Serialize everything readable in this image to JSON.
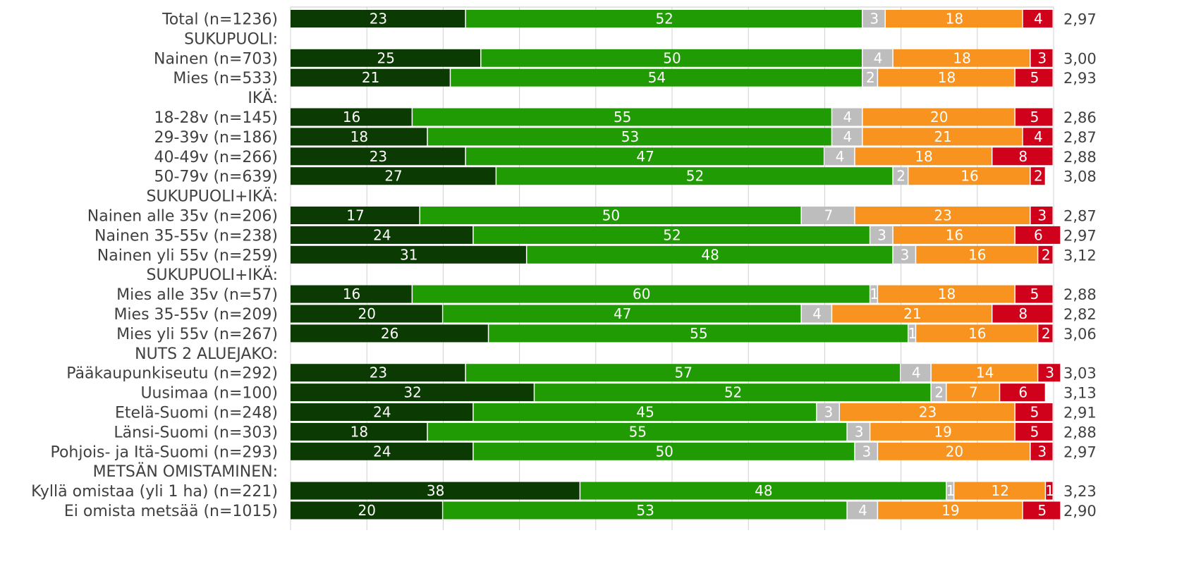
{
  "chart_data": {
    "type": "bar",
    "orientation": "horizontal",
    "stacked": true,
    "percent_stacked": true,
    "xlim": [
      0,
      100
    ],
    "grid": true,
    "legend": "none",
    "series_colors": [
      "#0b3a02",
      "#219b04",
      "#bdbdbd",
      "#f7931e",
      "#d0021b"
    ],
    "rows": [
      {
        "label": "Total (n=1236)",
        "values": [
          23,
          52,
          3,
          18,
          4
        ],
        "mean": "2,97"
      },
      {
        "label": "SUKUPUOLI:",
        "header": true
      },
      {
        "label": "Nainen (n=703)",
        "values": [
          25,
          50,
          4,
          18,
          3
        ],
        "mean": "3,00"
      },
      {
        "label": "Mies (n=533)",
        "values": [
          21,
          54,
          2,
          18,
          5
        ],
        "mean": "2,93"
      },
      {
        "label": "IKÄ:",
        "header": true
      },
      {
        "label": "18-28v (n=145)",
        "values": [
          16,
          55,
          4,
          20,
          5
        ],
        "mean": "2,86"
      },
      {
        "label": "29-39v (n=186)",
        "values": [
          18,
          53,
          4,
          21,
          4
        ],
        "mean": "2,87"
      },
      {
        "label": "40-49v (n=266)",
        "values": [
          23,
          47,
          4,
          18,
          8
        ],
        "mean": "2,88"
      },
      {
        "label": "50-79v (n=639)",
        "values": [
          27,
          52,
          2,
          16,
          2
        ],
        "mean": "3,08"
      },
      {
        "label": "SUKUPUOLI+IKÄ:",
        "header": true
      },
      {
        "label": "Nainen alle 35v  (n=206)",
        "values": [
          17,
          50,
          7,
          23,
          3
        ],
        "mean": "2,87"
      },
      {
        "label": "Nainen 35-55v (n=238)",
        "values": [
          24,
          52,
          3,
          16,
          6
        ],
        "mean": "2,97"
      },
      {
        "label": "Nainen yli 55v (n=259)",
        "values": [
          31,
          48,
          3,
          16,
          2
        ],
        "mean": "3,12"
      },
      {
        "label": "SUKUPUOLI+IKÄ:",
        "header": true
      },
      {
        "label": "Mies alle 35v (n=57)",
        "values": [
          16,
          60,
          1,
          18,
          5
        ],
        "mean": "2,88"
      },
      {
        "label": "Mies 35-55v (n=209)",
        "values": [
          20,
          47,
          4,
          21,
          8
        ],
        "mean": "2,82"
      },
      {
        "label": "Mies yli 55v (n=267)",
        "values": [
          26,
          55,
          1,
          16,
          2
        ],
        "mean": "3,06"
      },
      {
        "label": "NUTS 2 ALUEJAKO:",
        "header": true
      },
      {
        "label": "Pääkaupunkiseutu (n=292)",
        "values": [
          23,
          57,
          4,
          14,
          3
        ],
        "mean": "3,03"
      },
      {
        "label": "Uusimaa (n=100)",
        "values": [
          32,
          52,
          2,
          7,
          6
        ],
        "mean": "3,13"
      },
      {
        "label": "Etelä-Suomi (n=248)",
        "values": [
          24,
          45,
          3,
          23,
          5
        ],
        "mean": "2,91"
      },
      {
        "label": "Länsi-Suomi (n=303)",
        "values": [
          18,
          55,
          3,
          19,
          5
        ],
        "mean": "2,88"
      },
      {
        "label": "Pohjois- ja Itä-Suomi (n=293)",
        "values": [
          24,
          50,
          3,
          20,
          3
        ],
        "mean": "2,97"
      },
      {
        "label": "METSÄN OMISTAMINEN:",
        "header": true
      },
      {
        "label": "Kyllä omistaa (yli 1 ha) (n=221)",
        "values": [
          38,
          48,
          1,
          12,
          1
        ],
        "mean": "3,23"
      },
      {
        "label": "Ei omista metsää (n=1015)",
        "values": [
          20,
          53,
          4,
          19,
          5
        ],
        "mean": "2,90"
      }
    ]
  }
}
